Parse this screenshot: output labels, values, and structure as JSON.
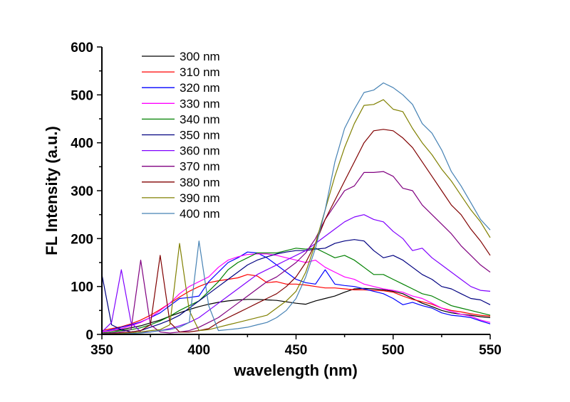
{
  "chart_data": {
    "type": "line",
    "title": "",
    "xlabel": "wavelength (nm)",
    "ylabel": "FL Intensity (a.u.)",
    "xlim": [
      350,
      550
    ],
    "ylim": [
      0,
      600
    ],
    "xticks": [
      350,
      400,
      450,
      500,
      550
    ],
    "yticks": [
      0,
      100,
      200,
      300,
      400,
      500,
      600
    ],
    "x_minor_step": 25,
    "y_minor_step": 50,
    "grid": false,
    "legend_position": "top-left",
    "x": [
      350,
      355,
      360,
      365,
      370,
      375,
      380,
      385,
      390,
      395,
      400,
      405,
      410,
      415,
      420,
      425,
      430,
      435,
      440,
      445,
      450,
      455,
      460,
      465,
      470,
      475,
      480,
      485,
      490,
      495,
      500,
      505,
      510,
      515,
      520,
      525,
      530,
      535,
      540,
      545,
      550
    ],
    "series": [
      {
        "name": "300 nm",
        "color": "#000000",
        "values": [
          5,
          8,
          10,
          14,
          18,
          24,
          30,
          38,
          45,
          52,
          58,
          63,
          67,
          70,
          72,
          73,
          73,
          72,
          71,
          68,
          65,
          63,
          70,
          75,
          80,
          88,
          95,
          96,
          95,
          93,
          90,
          85,
          75,
          65,
          58,
          50,
          45,
          42,
          40,
          37,
          35
        ]
      },
      {
        "name": "310 nm",
        "color": "#ff0000",
        "values": [
          8,
          12,
          16,
          22,
          30,
          40,
          52,
          65,
          78,
          90,
          100,
          108,
          112,
          115,
          118,
          125,
          122,
          108,
          110,
          105,
          105,
          103,
          100,
          97,
          97,
          95,
          93,
          93,
          92,
          91,
          88,
          80,
          73,
          68,
          63,
          55,
          50,
          47,
          43,
          40,
          38
        ]
      },
      {
        "name": "320 nm",
        "color": "#0000ff",
        "values": [
          5,
          10,
          15,
          20,
          26,
          35,
          45,
          60,
          75,
          77,
          80,
          110,
          130,
          150,
          160,
          172,
          170,
          160,
          145,
          130,
          115,
          108,
          105,
          135,
          105,
          102,
          100,
          95,
          90,
          85,
          75,
          62,
          67,
          60,
          55,
          45,
          40,
          38,
          35,
          28,
          22
        ]
      },
      {
        "name": "330 nm",
        "color": "#ff00ff",
        "values": [
          5,
          8,
          12,
          18,
          25,
          35,
          50,
          65,
          85,
          100,
          110,
          120,
          140,
          155,
          162,
          167,
          168,
          168,
          165,
          160,
          155,
          150,
          155,
          140,
          130,
          120,
          115,
          105,
          100,
          95,
          92,
          88,
          80,
          75,
          65,
          55,
          48,
          42,
          38,
          30,
          25
        ]
      },
      {
        "name": "340 nm",
        "color": "#008000",
        "values": [
          3,
          5,
          8,
          10,
          14,
          20,
          28,
          38,
          50,
          60,
          70,
          90,
          110,
          135,
          150,
          160,
          170,
          170,
          170,
          175,
          180,
          178,
          180,
          170,
          160,
          165,
          155,
          140,
          125,
          125,
          115,
          105,
          95,
          85,
          80,
          70,
          60,
          55,
          50,
          45,
          40
        ]
      },
      {
        "name": "350 nm",
        "color": "#000080",
        "values": [
          125,
          20,
          10,
          5,
          8,
          15,
          22,
          30,
          40,
          55,
          70,
          85,
          100,
          115,
          130,
          145,
          155,
          162,
          168,
          172,
          175,
          175,
          178,
          180,
          190,
          195,
          198,
          195,
          175,
          160,
          165,
          155,
          140,
          125,
          115,
          100,
          95,
          85,
          75,
          72,
          62
        ]
      },
      {
        "name": "360 nm",
        "color": "#8000ff",
        "values": [
          5,
          25,
          135,
          25,
          5,
          5,
          8,
          12,
          18,
          25,
          35,
          50,
          65,
          80,
          95,
          110,
          125,
          135,
          145,
          155,
          165,
          175,
          190,
          205,
          220,
          235,
          245,
          250,
          240,
          235,
          215,
          200,
          175,
          180,
          160,
          145,
          130,
          115,
          100,
          92,
          90
        ]
      },
      {
        "name": "370 nm",
        "color": "#800080",
        "values": [
          2,
          3,
          5,
          10,
          155,
          20,
          5,
          3,
          5,
          8,
          15,
          25,
          35,
          50,
          65,
          80,
          95,
          110,
          120,
          135,
          150,
          170,
          200,
          240,
          270,
          300,
          310,
          338,
          338,
          340,
          330,
          305,
          300,
          270,
          250,
          230,
          210,
          185,
          165,
          145,
          130
        ]
      },
      {
        "name": "380 nm",
        "color": "#800000",
        "values": [
          1,
          2,
          3,
          5,
          8,
          20,
          165,
          25,
          5,
          5,
          8,
          12,
          25,
          35,
          45,
          55,
          65,
          75,
          85,
          100,
          120,
          150,
          190,
          240,
          280,
          320,
          360,
          400,
          425,
          428,
          425,
          410,
          390,
          360,
          330,
          300,
          270,
          250,
          220,
          195,
          165
        ]
      },
      {
        "name": "390 nm",
        "color": "#808000",
        "values": [
          1,
          1,
          2,
          3,
          5,
          8,
          10,
          20,
          190,
          50,
          8,
          10,
          15,
          20,
          25,
          30,
          35,
          40,
          55,
          70,
          90,
          130,
          190,
          260,
          330,
          390,
          440,
          478,
          480,
          490,
          470,
          465,
          430,
          400,
          375,
          345,
          320,
          290,
          260,
          235,
          202
        ]
      },
      {
        "name": "400 nm",
        "color": "#4682b4",
        "values": [
          1,
          1,
          1,
          2,
          3,
          5,
          8,
          10,
          15,
          25,
          195,
          60,
          8,
          10,
          12,
          15,
          20,
          25,
          35,
          50,
          75,
          120,
          180,
          260,
          360,
          430,
          470,
          505,
          510,
          525,
          515,
          500,
          480,
          440,
          420,
          385,
          340,
          310,
          275,
          240,
          218
        ]
      }
    ]
  }
}
